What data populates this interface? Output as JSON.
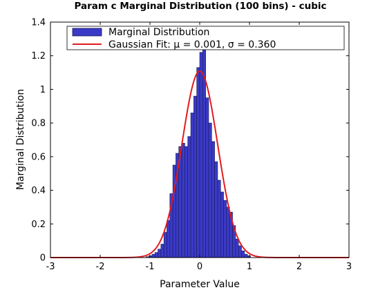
{
  "chart_data": {
    "type": "bar",
    "title": "Param c Marginal Distribution (100 bins) - cubic",
    "xlabel": "Parameter Value",
    "ylabel": "Marginal Distribution",
    "xlim": [
      -3,
      3
    ],
    "ylim": [
      0,
      1.4
    ],
    "xticks": [
      -3,
      -2,
      -1,
      0,
      1,
      2,
      3
    ],
    "yticks": [
      0,
      0.2,
      0.4,
      0.6,
      0.8,
      1,
      1.2,
      1.4
    ],
    "ytick_labels": [
      "0",
      "0.2",
      "0.4",
      "0.6",
      "0.8",
      "1",
      "1.2",
      "1.4"
    ],
    "grid": false,
    "legend_position": "top",
    "colors": {
      "bars": "#3a3ac8",
      "bar_edge": "#1a1a50",
      "fit": "#e31a1c"
    },
    "series": [
      {
        "name": "Marginal Distribution",
        "kind": "histogram",
        "bin_width": 0.06,
        "bin_centers": [
          -1.05,
          -0.99,
          -0.93,
          -0.87,
          -0.81,
          -0.75,
          -0.69,
          -0.63,
          -0.57,
          -0.51,
          -0.45,
          -0.39,
          -0.33,
          -0.27,
          -0.21,
          -0.15,
          -0.09,
          -0.03,
          0.03,
          0.09,
          0.15,
          0.21,
          0.27,
          0.33,
          0.39,
          0.45,
          0.51,
          0.57,
          0.63,
          0.69,
          0.75,
          0.81,
          0.87,
          0.93,
          0.99
        ],
        "values": [
          0.005,
          0.01,
          0.02,
          0.03,
          0.05,
          0.08,
          0.15,
          0.22,
          0.38,
          0.55,
          0.62,
          0.66,
          0.68,
          0.66,
          0.72,
          0.86,
          0.96,
          1.13,
          1.22,
          1.27,
          0.95,
          0.8,
          0.69,
          0.57,
          0.46,
          0.39,
          0.34,
          0.3,
          0.27,
          0.19,
          0.11,
          0.07,
          0.04,
          0.02,
          0.01
        ]
      },
      {
        "name": "Gaussian Fit: μ = 0.001, σ  = 0.360",
        "kind": "line",
        "mu": 0.001,
        "sigma": 0.36
      }
    ]
  }
}
